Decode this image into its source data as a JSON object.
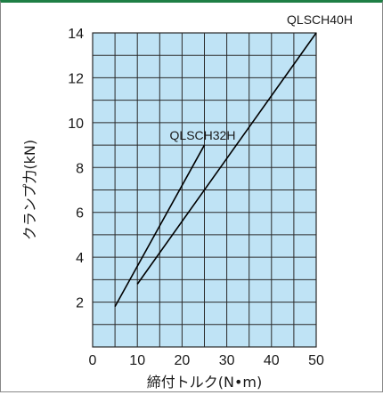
{
  "chart_data": {
    "type": "line",
    "xlabel": "締付トルク(N•m)",
    "ylabel": "クランプ力(kN)",
    "xlim": [
      0,
      50
    ],
    "ylim": [
      0,
      14
    ],
    "x_ticks": [
      "0",
      "10",
      "20",
      "30",
      "40",
      "50"
    ],
    "y_ticks": [
      "2",
      "4",
      "6",
      "8",
      "10",
      "12",
      "14"
    ],
    "grid": true,
    "plot_background": "#bfe3f5",
    "series": [
      {
        "name": "QLSCH32H",
        "x": [
          5,
          25
        ],
        "y": [
          1.8,
          9
        ]
      },
      {
        "name": "QLSCH40H",
        "x": [
          10,
          50
        ],
        "y": [
          2.8,
          14
        ]
      }
    ]
  }
}
